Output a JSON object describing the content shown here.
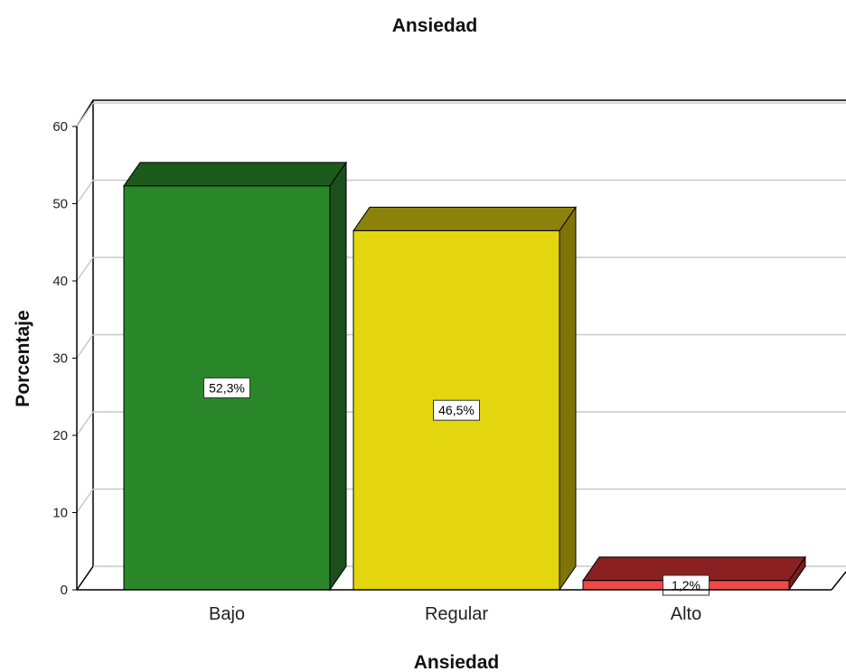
{
  "chart_data": {
    "type": "bar",
    "title": "Ansiedad",
    "xlabel": "Ansiedad",
    "ylabel": "Porcentaje",
    "categories": [
      "Bajo",
      "Regular",
      "Alto"
    ],
    "values": [
      52.3,
      46.5,
      1.2
    ],
    "data_labels": [
      "52,3%",
      "46,5%",
      "1,2%"
    ],
    "ylim": [
      0,
      60
    ],
    "yticks": [
      "0",
      "10",
      "20",
      "30",
      "40",
      "50",
      "60"
    ],
    "grid": true,
    "style": "3d",
    "colors": [
      {
        "front": "#2a882a",
        "top": "#1c5a1c",
        "side": "#1d4f1d"
      },
      {
        "front": "#e3d60f",
        "top": "#8c820a",
        "side": "#7e7408"
      },
      {
        "front": "#f04848",
        "top": "#8a2020",
        "side": "#7a1c1c"
      }
    ]
  }
}
